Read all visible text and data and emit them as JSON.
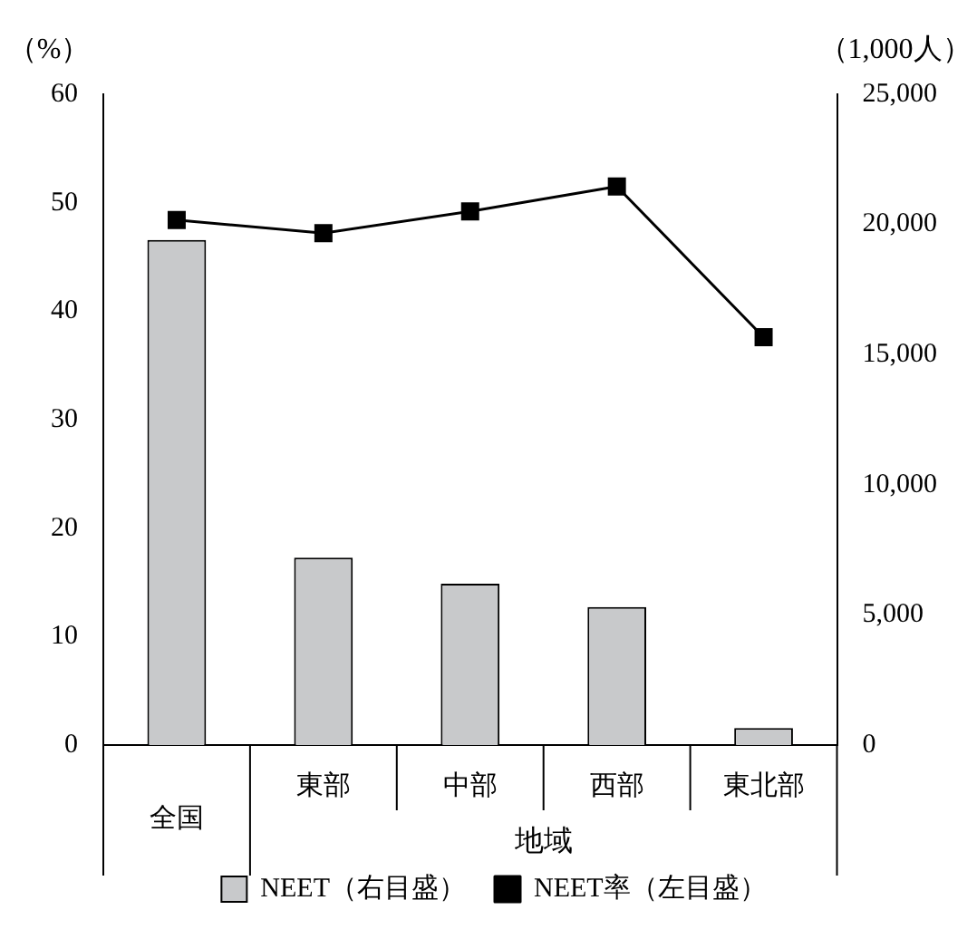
{
  "chart_data": {
    "type": "bar",
    "ylabel": "（%）",
    "y2label": "（1,000人）",
    "categories": [
      "全国",
      "東部",
      "中部",
      "西部",
      "東北部"
    ],
    "annotations": [
      "地域"
    ],
    "series": [
      {
        "name": "NEET（右目盛）",
        "axis": "y2",
        "color": "#c8c9cb",
        "values": [
          19400,
          7200,
          6200,
          5300,
          650
        ]
      },
      {
        "name": "NEET率（左目盛）",
        "type": "line",
        "axis": "y",
        "color": "#000000",
        "values": [
          48.4,
          47.2,
          49.2,
          51.5,
          37.6
        ]
      }
    ],
    "ylim": [
      0,
      60
    ],
    "yticks": [
      0,
      10,
      20,
      30,
      40,
      50,
      60
    ],
    "y2lim": [
      0,
      25000
    ],
    "y2ticks": [
      0,
      {
        "value": 5000,
        "label": "5,000"
      },
      {
        "value": 10000,
        "label": "10,000"
      },
      {
        "value": 15000,
        "label": "15,000"
      },
      {
        "value": 20000,
        "label": "20,000"
      },
      {
        "value": 25000,
        "label": "25,000"
      }
    ],
    "grid": false,
    "legend": "bottom",
    "marker": "square",
    "line_style": "solid"
  }
}
